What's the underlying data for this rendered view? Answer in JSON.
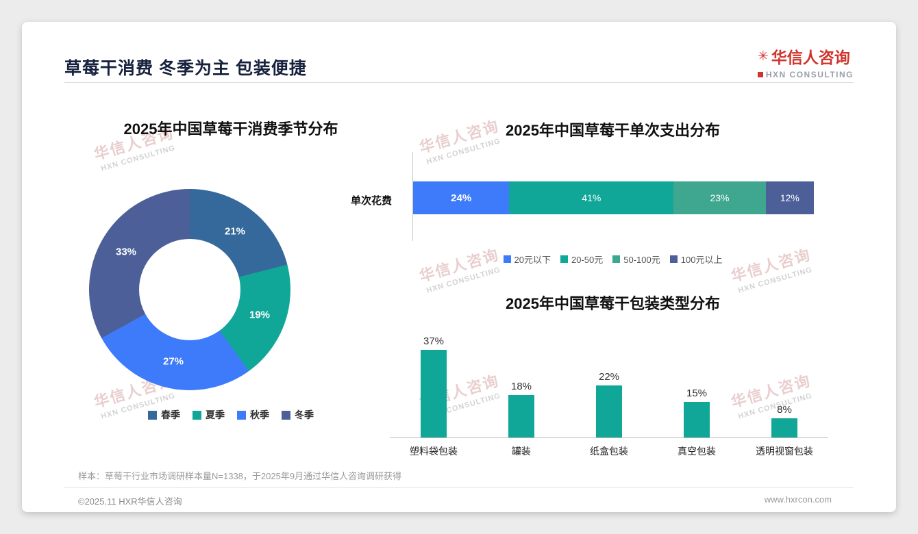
{
  "page": {
    "title": "草莓干消费 冬季为主 包装便捷",
    "sample_note": "样本：草莓干行业市场调研样本量N=1338，于2025年9月通过华信人咨询调研获得",
    "copyright": "©2025.11 HXR华信人咨询",
    "website": "www.hxrcon.com"
  },
  "logo": {
    "name": "华信人咨询",
    "subtitle": "HXN CONSULTING",
    "icon": "✳",
    "color": "#d0342c"
  },
  "watermark": {
    "line1": "华信人咨询",
    "line2": "HXN CONSULTING"
  },
  "chart_data": [
    {
      "type": "pie",
      "donut": true,
      "title": "2025年中国草莓干消费季节分布",
      "legend_position": "bottom",
      "segments": [
        {
          "label": "春季",
          "value": 21,
          "color": "#35689b"
        },
        {
          "label": "夏季",
          "value": 19,
          "color": "#10a798"
        },
        {
          "label": "秋季",
          "value": 27,
          "color": "#3e7bfa"
        },
        {
          "label": "冬季",
          "value": 33,
          "color": "#4d5f99"
        }
      ]
    },
    {
      "type": "bar",
      "variant": "horizontal-stacked",
      "title": "2025年中国草莓干单次支出分布",
      "category": "单次花费",
      "xlim": [
        0,
        100
      ],
      "legend_position": "bottom",
      "segments": [
        {
          "label": "20元以下",
          "value": 24,
          "color": "#3e7bfa"
        },
        {
          "label": "20-50元",
          "value": 41,
          "color": "#10a798"
        },
        {
          "label": "50-100元",
          "value": 23,
          "color": "#3fa78f"
        },
        {
          "label": "100元以上",
          "value": 12,
          "color": "#4d5f99"
        }
      ]
    },
    {
      "type": "bar",
      "title": "2025年中国草莓干包装类型分布",
      "categories": [
        "塑料袋包装",
        "罐装",
        "纸盒包装",
        "真空包装",
        "透明视窗包装"
      ],
      "values": [
        37,
        18,
        22,
        15,
        8
      ],
      "unit": "%",
      "color": "#10a798",
      "ylim": [
        0,
        40
      ],
      "grid": false
    }
  ]
}
